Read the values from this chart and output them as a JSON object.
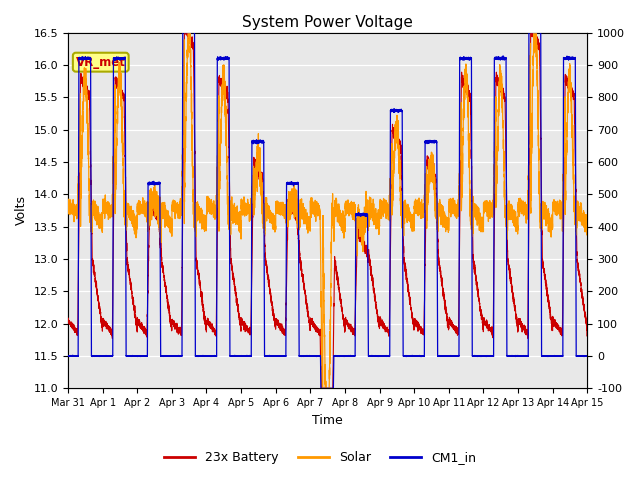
{
  "title": "System Power Voltage",
  "xlabel": "Time",
  "ylabel_left": "Volts",
  "ylim_left": [
    11.0,
    16.5
  ],
  "ylim_right": [
    -100,
    1000
  ],
  "yticks_left": [
    11.0,
    11.5,
    12.0,
    12.5,
    13.0,
    13.5,
    14.0,
    14.5,
    15.0,
    15.5,
    16.0,
    16.5
  ],
  "yticks_right": [
    -100,
    0,
    100,
    200,
    300,
    400,
    500,
    600,
    700,
    800,
    900,
    1000
  ],
  "xtick_labels": [
    "Mar 31",
    "Apr 1",
    "Apr 2",
    "Apr 3",
    "Apr 4",
    "Apr 5",
    "Apr 6",
    "Apr 7",
    "Apr 8",
    "Apr 9",
    "Apr 10",
    "Apr 11",
    "Apr 12",
    "Apr 13",
    "Apr 14",
    "Apr 15"
  ],
  "color_battery": "#cc0000",
  "color_solar": "#ff9900",
  "color_cm1": "#0000cc",
  "plot_bg_color": "#e8e8e8",
  "legend_labels": [
    "23x Battery",
    "Solar",
    "CM1_in"
  ],
  "vr_met_label": "VR_met",
  "vr_met_box_color": "#ffff88",
  "vr_met_edge_color": "#aaaa00",
  "vr_met_text_color": "#cc0000",
  "n_days": 15,
  "n_per_day": 500,
  "cloud_factors": [
    1.0,
    1.0,
    0.88,
    1.05,
    1.0,
    0.92,
    0.88,
    0.65,
    0.85,
    0.95,
    0.92,
    1.0,
    1.0,
    1.05,
    1.0
  ]
}
